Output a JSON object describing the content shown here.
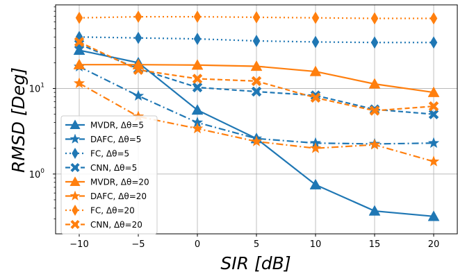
{
  "chart_data": {
    "type": "line",
    "xlabel_main": "SIR",
    "xlabel_unit": "[dB]",
    "ylabel_main": "RMSD",
    "ylabel_unit": "[Deg]",
    "yscale": "log",
    "xlim": [
      -12,
      22
    ],
    "ylim": [
      0.2,
      95
    ],
    "grid": true,
    "legend_position": "lower-left",
    "x": [
      -10,
      -5,
      0,
      5,
      10,
      15,
      20
    ],
    "xticks": [
      -10,
      -5,
      0,
      5,
      10,
      15,
      20
    ],
    "yticks": [
      {
        "value": 1,
        "base": "10",
        "exp": "0"
      },
      {
        "value": 10,
        "base": "10",
        "exp": "1"
      }
    ],
    "series": [
      {
        "name": "MVDR, Δθ=5",
        "color": "#1f77b4",
        "linestyle": "solid",
        "marker": "triangle",
        "values": [
          28,
          20,
          5.6,
          2.6,
          0.75,
          0.37,
          0.32
        ]
      },
      {
        "name": "DAFC, Δθ=5",
        "color": "#1f77b4",
        "linestyle": "dashdot",
        "marker": "star",
        "values": [
          18,
          8.2,
          4.0,
          2.6,
          2.3,
          2.25,
          2.3
        ]
      },
      {
        "name": "FC, Δθ=5",
        "color": "#1f77b4",
        "linestyle": "dotted",
        "marker": "thin-diamond",
        "values": [
          40,
          39,
          38,
          36,
          35,
          34.5,
          34.5
        ]
      },
      {
        "name": "CNN, Δθ=5",
        "color": "#1f77b4",
        "linestyle": "dashed",
        "marker": "x-filled",
        "values": [
          33,
          17,
          10.3,
          9.2,
          8.3,
          5.7,
          5.0
        ]
      },
      {
        "name": "MVDR, Δθ=20",
        "color": "#ff7f0e",
        "linestyle": "solid",
        "marker": "triangle",
        "values": [
          19,
          19,
          18.8,
          18.2,
          15.8,
          11.3,
          9.0
        ]
      },
      {
        "name": "DAFC, Δθ=20",
        "color": "#ff7f0e",
        "linestyle": "dashdot",
        "marker": "star",
        "values": [
          11.5,
          4.7,
          3.4,
          2.4,
          2.0,
          2.2,
          1.4
        ]
      },
      {
        "name": "FC, Δθ=20",
        "color": "#ff7f0e",
        "linestyle": "dotted",
        "marker": "thin-diamond",
        "values": [
          67,
          69,
          69,
          68,
          67,
          66,
          66
        ]
      },
      {
        "name": "CNN, Δθ=20",
        "color": "#ff7f0e",
        "linestyle": "dashed",
        "marker": "x-filled",
        "values": [
          35,
          16.5,
          13,
          12.2,
          7.8,
          5.5,
          6.2
        ]
      }
    ]
  }
}
